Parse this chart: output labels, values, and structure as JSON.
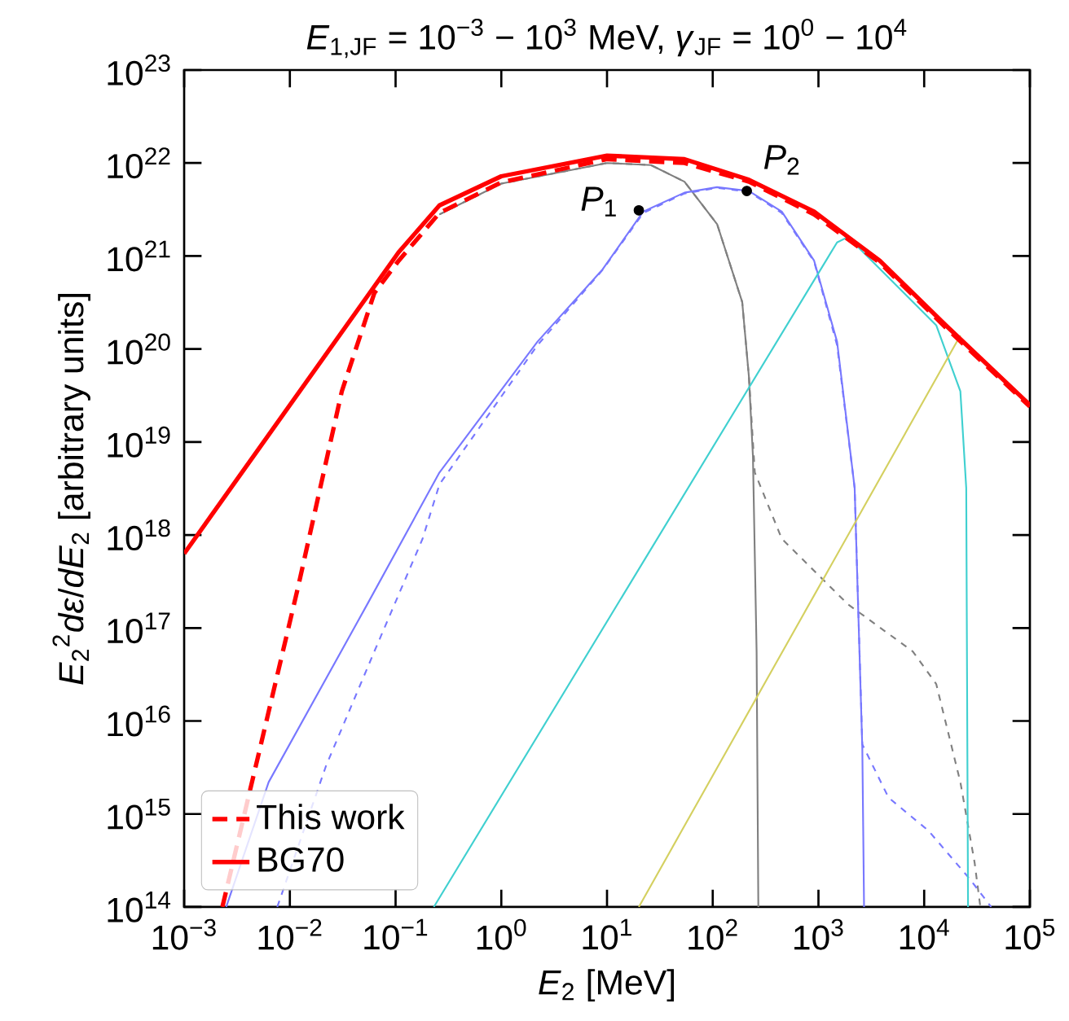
{
  "chart_data": {
    "type": "line",
    "title": "*E*$_{1,JF}$ = 10$^{−3}$ − 10$^{3}$ MeV, *γ*$_{JF}$ = 10$^{0}$ − 10$^{4}$",
    "xlabel": "*E*$_{2}$ [MeV]",
    "ylabel": "*E*$_{2}$$^{2}$*dε*/*dE*$_{2}$ [arbitrary units]",
    "log": "xy",
    "legend": "bottom left",
    "grid": false,
    "xlim": [
      0.001,
      100000
    ],
    "ylim": [
      100000000000000.0,
      1e+23
    ],
    "xticks": [
      {
        "value": 0.001,
        "label": "10$^{−3}$"
      },
      {
        "value": 0.01,
        "label": "10$^{−2}$"
      },
      {
        "value": 0.1,
        "label": "10$^{−1}$"
      },
      {
        "value": 1,
        "label": "10$^{0}$"
      },
      {
        "value": 10,
        "label": "10$^{1}$"
      },
      {
        "value": 100,
        "label": "10$^{2}$"
      },
      {
        "value": 1000,
        "label": "10$^{3}$"
      },
      {
        "value": 10000,
        "label": "10$^{4}$"
      },
      {
        "value": 100000,
        "label": "10$^{5}$"
      }
    ],
    "yticks": [
      {
        "value": 100000000000000.0,
        "label": "10$^{14}$"
      },
      {
        "value": 1000000000000000.0,
        "label": "10$^{15}$"
      },
      {
        "value": 1e+16,
        "label": "10$^{16}$"
      },
      {
        "value": 1e+17,
        "label": "10$^{17}$"
      },
      {
        "value": 1e+18,
        "label": "10$^{18}$"
      },
      {
        "value": 1e+19,
        "label": "10$^{19}$"
      },
      {
        "value": 1e+20,
        "label": "10$^{20}$"
      },
      {
        "value": 1e+21,
        "label": "10$^{21}$"
      },
      {
        "value": 1e+22,
        "label": "10$^{22}$"
      },
      {
        "value": 1e+23,
        "label": "10$^{23}$"
      }
    ],
    "series": [
      {
        "color": "#808080",
        "line_style": "solid",
        "x": [
          0.26,
          1,
          10,
          26,
          54,
          110,
          190,
          220,
          240,
          260,
          270
        ],
        "values": [
          2.8e+21,
          6e+21,
          1e+22,
          9.5e+21,
          6.3e+21,
          2.2e+21,
          3.2e+20,
          5e+19,
          7e+18,
          5.6e+16,
          100000000000000.0
        ]
      },
      {
        "color": "#808080",
        "line_style": "dashed",
        "x": [
          0.26,
          1,
          10,
          26,
          54,
          110,
          190,
          220,
          250,
          450,
          1900,
          7800,
          13000,
          22000,
          30000,
          34000
        ],
        "values": [
          2.8e+21,
          6e+21,
          1e+22,
          9.5e+21,
          6.3e+21,
          2.2e+21,
          3.2e+20,
          5e+19,
          4.7e+18,
          9.1e+17,
          1.8e+17,
          5.6e+16,
          2.5e+16,
          2200000000000000.0,
          300000000000000.0,
          100000000000000.0
        ]
      },
      {
        "color": "#7878ff",
        "line_style": "solid",
        "x": [
          0.0025,
          0.0063,
          0.054,
          0.26,
          2.2,
          9.1,
          22,
          54,
          110,
          220,
          450,
          910,
          1500,
          2200,
          2600,
          2700
        ],
        "values": [
          100000000000000.0,
          2200000000000000.0,
          1.8e+17,
          4.7e+18,
          1.2e+20,
          7.2e+20,
          3e+21,
          4.8e+21,
          5.5e+21,
          5e+21,
          3e+21,
          8.9e+20,
          1.2e+20,
          3.2e+18,
          5000000000000000.0,
          100000000000000.0
        ]
      },
      {
        "color": "#7878ff",
        "line_style": "dashed",
        "x": [
          0.0076,
          0.022,
          0.063,
          0.18,
          0.26,
          2.2,
          9.1,
          22,
          54,
          110,
          220,
          450,
          910,
          1500,
          2200,
          2600,
          4600,
          11000,
          27000,
          43000
        ],
        "values": [
          100000000000000.0,
          3300000000000000.0,
          5.6e+16,
          9.1e+17,
          3.5e+18,
          1.1e+20,
          7.1e+20,
          2.9e+21,
          4.7e+21,
          5.4e+21,
          4.9e+21,
          2.9e+21,
          8.7e+20,
          1.1e+20,
          3.2e+18,
          5600000000000000.0,
          1500000000000000.0,
          660000000000000.0,
          200000000000000.0,
          100000000000000.0
        ]
      },
      {
        "color": "#40d0d0",
        "line_style": "solid",
        "x": [
          0.23,
          1500,
          1900,
          13000,
          22000,
          25000,
          26000
        ],
        "values": [
          100000000000000.0,
          1.4e+21,
          1.6e+21,
          1.8e+20,
          3.5e+19,
          3.2e+18,
          100000000000000.0
        ]
      },
      {
        "color": "#d4d060",
        "line_style": "solid",
        "x": [
          20,
          22000
        ],
        "values": [
          100000000000000.0,
          1.4e+20
        ]
      },
      {
        "name": "This work",
        "color": "#ff0000",
        "line_style": "dashed",
        "x": [
          0.0023,
          0.0052,
          0.012,
          0.031,
          0.063,
          0.107,
          0.26,
          1,
          10,
          54,
          220,
          910,
          3800,
          16000,
          100000
        ],
        "values": [
          100000000000000.0,
          5000000000000000.0,
          2.8e+17,
          3.5e+19,
          4e+20,
          8.9e+20,
          2.9e+21,
          6.2e+21,
          1.1e+22,
          1e+22,
          6.3e+21,
          2.8e+21,
          8.5e+20,
          1.7e+20,
          2.4e+19
        ]
      },
      {
        "name": "BG70",
        "color": "#ff0000",
        "line_style": "solid",
        "x": [
          0.001,
          0.107,
          0.26,
          1,
          10,
          54,
          220,
          910,
          3800,
          16000,
          100000
        ],
        "values": [
          6.3e+17,
          1.1e+21,
          3.5e+21,
          7.2e+21,
          1.2e+22,
          1.1e+22,
          6.6e+21,
          3e+21,
          8.9e+20,
          1.8e+20,
          2.5e+19
        ]
      }
    ],
    "annotations": [
      {
        "text": "*P*$_{1}$",
        "x": 20,
        "y": 3.1e+21
      },
      {
        "text": "*P*$_{2}$",
        "x": 210,
        "y": 5e+21
      }
    ]
  }
}
